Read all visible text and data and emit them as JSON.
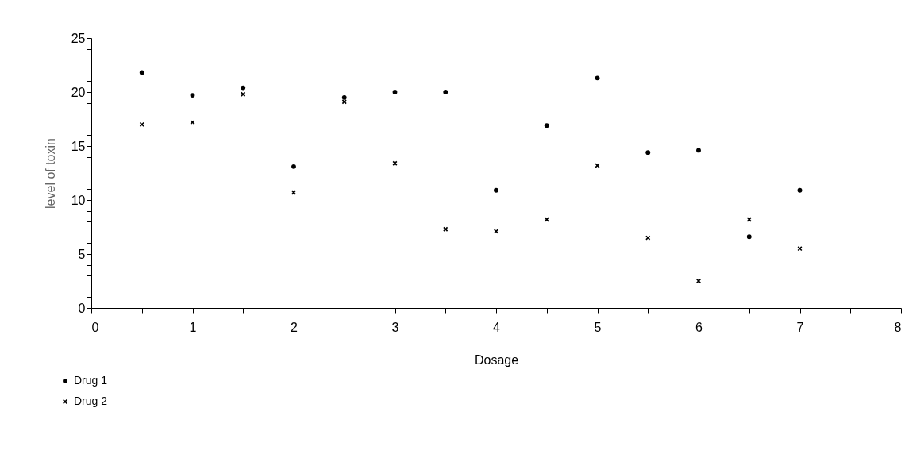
{
  "chart_data": {
    "type": "scatter",
    "xlabel": "Dosage",
    "ylabel": "level of toxin",
    "x": [
      0.5,
      1,
      1.5,
      2,
      2.5,
      3,
      3.5,
      4,
      4.5,
      5,
      5.5,
      6,
      6.5,
      7
    ],
    "series": [
      {
        "name": "Drug 1",
        "color": "#000000",
        "marker": "circle",
        "values": [
          21.8,
          19.7,
          20.4,
          13.1,
          19.5,
          20.0,
          20.0,
          10.9,
          16.9,
          21.3,
          14.4,
          14.6,
          6.6,
          10.9
        ]
      },
      {
        "name": "Drug 2",
        "color": "#000000",
        "marker": "cross",
        "values": [
          17.0,
          17.2,
          19.8,
          10.7,
          19.1,
          13.4,
          7.3,
          7.1,
          8.2,
          13.2,
          6.5,
          2.5,
          8.2,
          5.5
        ]
      }
    ],
    "xlim": [
      0,
      8
    ],
    "xticks": [
      0,
      {
        "value": 0.5,
        "label": null
      },
      1,
      {
        "value": 1.5,
        "label": null
      },
      2,
      {
        "value": 2.5,
        "label": null
      },
      3,
      {
        "value": 3.5,
        "label": null
      },
      4,
      {
        "value": 4.5,
        "label": null
      },
      5,
      {
        "value": 5.5,
        "label": null
      },
      6,
      {
        "value": 6.5,
        "label": null
      },
      7,
      {
        "value": 7.5,
        "label": null
      },
      8
    ],
    "ylim": [
      0,
      25
    ],
    "yticks": [
      0,
      {
        "value": 1,
        "label": null
      },
      {
        "value": 2,
        "label": null
      },
      {
        "value": 3,
        "label": null
      },
      {
        "value": 4,
        "label": null
      },
      5,
      {
        "value": 6,
        "label": null
      },
      {
        "value": 7,
        "label": null
      },
      {
        "value": 8,
        "label": null
      },
      {
        "value": 9,
        "label": null
      },
      10,
      {
        "value": 11,
        "label": null
      },
      {
        "value": 12,
        "label": null
      },
      {
        "value": 13,
        "label": null
      },
      {
        "value": 14,
        "label": null
      },
      15,
      {
        "value": 16,
        "label": null
      },
      {
        "value": 17,
        "label": null
      },
      {
        "value": 18,
        "label": null
      },
      {
        "value": 19,
        "label": null
      },
      20,
      {
        "value": 21,
        "label": null
      },
      {
        "value": 22,
        "label": null
      },
      {
        "value": 23,
        "label": null
      },
      {
        "value": 24,
        "label": null
      },
      25
    ],
    "grid": false,
    "legend": "bottom left"
  }
}
